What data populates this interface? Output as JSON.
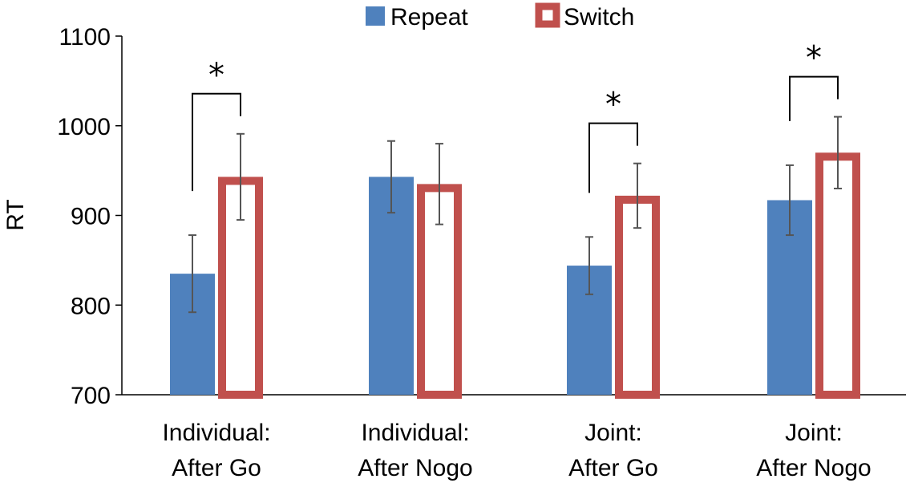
{
  "chart_data": {
    "type": "bar",
    "title": "",
    "xlabel": "",
    "ylabel": "RT",
    "ylim": [
      700,
      1100
    ],
    "yticks": [
      700,
      800,
      900,
      1000,
      1100
    ],
    "grid": false,
    "legend_position": "top",
    "categories": [
      [
        "Individual:",
        "After Go"
      ],
      [
        "Individual:",
        "After Nogo"
      ],
      [
        "Joint:",
        "After Go"
      ],
      [
        "Joint:",
        "After Nogo"
      ]
    ],
    "series": [
      {
        "name": "Repeat",
        "style": "filled",
        "color": "#4F81BD",
        "values": [
          835,
          943,
          844,
          917
        ],
        "error": [
          43,
          40,
          32,
          39
        ]
      },
      {
        "name": "Switch",
        "style": "outline",
        "color": "#C0504D",
        "values": [
          943,
          935,
          922,
          970
        ],
        "error": [
          48,
          45,
          36,
          40
        ]
      }
    ],
    "significance": [
      {
        "category_index": 0,
        "label": "*"
      },
      {
        "category_index": 2,
        "label": "*"
      },
      {
        "category_index": 3,
        "label": "*"
      }
    ],
    "colors": {
      "error_bar": "#555555",
      "axis": "#000000",
      "bracket": "#000000"
    }
  }
}
